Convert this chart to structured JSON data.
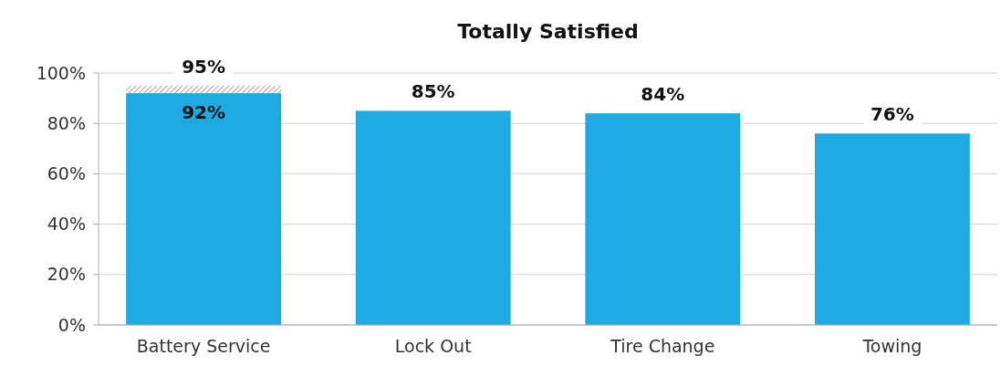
{
  "chart_data": {
    "type": "bar",
    "title": "Totally Satisfied",
    "categories": [
      "Battery Service",
      "Lock Out",
      "Tire Change",
      "Towing"
    ],
    "stacked": true,
    "series": [
      {
        "color": "#1eaae2",
        "values": [
          92,
          85,
          84,
          76
        ],
        "value_labels": [
          "92%",
          null,
          null,
          null
        ]
      },
      {
        "color": "#a6a6a6",
        "values": [
          3,
          null,
          null,
          null
        ]
      }
    ],
    "totals": [
      "95%",
      "85%",
      "84%",
      "76%"
    ],
    "ylim": [
      0,
      100
    ],
    "yticks": [
      {
        "value": 0,
        "label": "0%"
      },
      {
        "value": 20,
        "label": "20%"
      },
      {
        "value": 40,
        "label": "40%"
      },
      {
        "value": 60,
        "label": "60%"
      },
      {
        "value": 80,
        "label": "80%"
      },
      {
        "value": 100,
        "label": "100%"
      }
    ],
    "grid": "y"
  }
}
